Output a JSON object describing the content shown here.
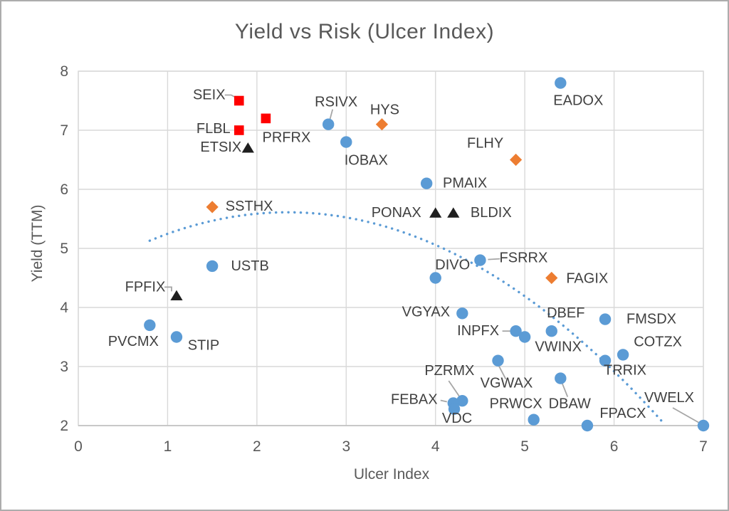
{
  "chart_data": {
    "type": "scatter",
    "title": "Yield vs Risk (Ulcer Index)",
    "xlabel": "Ulcer Index",
    "ylabel": "Yield (TTM)",
    "xlim": [
      0,
      7
    ],
    "ylim": [
      2,
      8
    ],
    "xticks": [
      0,
      1,
      2,
      3,
      4,
      5,
      6,
      7
    ],
    "yticks": [
      2,
      3,
      4,
      5,
      6,
      7,
      8
    ],
    "grid": true,
    "legend_position": "none",
    "series": [
      {
        "name": "blue-circle-funds",
        "marker": "circle",
        "color": "#5B9BD5",
        "points": [
          {
            "label": "EADOX",
            "x": 5.4,
            "y": 7.8,
            "label_dx": 25,
            "label_dy": 25
          },
          {
            "label": "RSIVX",
            "x": 2.8,
            "y": 7.1,
            "label_dx": 11,
            "label_dy": -31,
            "leader": [
              [
                6,
                -21
              ],
              [
                2,
                -6
              ]
            ]
          },
          {
            "label": "IOBAX",
            "x": 3.0,
            "y": 6.8,
            "label_dx": 28,
            "label_dy": 26
          },
          {
            "label": "PMAIX",
            "x": 3.9,
            "y": 6.1,
            "label_dx": 54,
            "label_dy": 0
          },
          {
            "label": "USTB",
            "x": 1.5,
            "y": 4.7,
            "label_dx": 53,
            "label_dy": 0
          },
          {
            "label": "FSRRX",
            "x": 4.5,
            "y": 4.8,
            "label_dx": 61,
            "label_dy": -3,
            "leader": [
              [
                11,
                -1
              ],
              [
                28,
                -2
              ]
            ]
          },
          {
            "label": "DIVO",
            "x": 4.0,
            "y": 4.5,
            "label_dx": 24,
            "label_dy": -18
          },
          {
            "label": "VGYAX",
            "x": 4.3,
            "y": 3.9,
            "label_dx": -51,
            "label_dy": -2
          },
          {
            "label": "INPFX",
            "x": 4.9,
            "y": 3.6,
            "label_dx": -53,
            "label_dy": 0,
            "leader": [
              [
                -19,
                0
              ],
              [
                -8,
                0
              ]
            ]
          },
          {
            "label": "VWINX",
            "x": 5.0,
            "y": 3.5,
            "label_dx": 47,
            "label_dy": 14
          },
          {
            "label": "DBEF",
            "x": 5.3,
            "y": 3.6,
            "label_dx": 20,
            "label_dy": -25
          },
          {
            "label": "FMSDX",
            "x": 5.9,
            "y": 3.8,
            "label_dx": 65,
            "label_dy": 0
          },
          {
            "label": "COTZX",
            "x": 6.1,
            "y": 3.2,
            "label_dx": 49,
            "label_dy": -18
          },
          {
            "label": "TRRIX",
            "x": 5.9,
            "y": 3.1,
            "label_dx": 28,
            "label_dy": 14
          },
          {
            "label": "VGWAX",
            "x": 4.7,
            "y": 3.1,
            "label_dx": 12,
            "label_dy": 32,
            "leader": [
              [
                1,
                7
              ],
              [
                11,
                26
              ]
            ]
          },
          {
            "label": "DBAW",
            "x": 5.4,
            "y": 2.8,
            "label_dx": 13,
            "label_dy": 36,
            "leader": [
              [
                2,
                6
              ],
              [
                10,
                26
              ]
            ]
          },
          {
            "label": "PZRMX",
            "x": 4.3,
            "y": 2.42,
            "label_dx": -18,
            "label_dy": -42,
            "leader": [
              [
                -19,
                -28
              ],
              [
                -4,
                -6
              ]
            ]
          },
          {
            "label": "FEBAX",
            "x": 4.2,
            "y": 2.38,
            "label_dx": -55,
            "label_dy": -5,
            "leader": [
              [
                -18,
                -4
              ],
              [
                -9,
                -2
              ]
            ]
          },
          {
            "label": "VDC",
            "x": 4.21,
            "y": 2.28,
            "label_dx": 4,
            "label_dy": 13
          },
          {
            "label": "PRWCX",
            "x": 5.1,
            "y": 2.1,
            "label_dx": -25,
            "label_dy": -22
          },
          {
            "label": "FPACX",
            "x": 5.7,
            "y": 2.0,
            "label_dx": 50,
            "label_dy": -17
          },
          {
            "label": "VWELX",
            "x": 7.0,
            "y": 2.0,
            "label_dx": -48,
            "label_dy": -39,
            "leader": [
              [
                -43,
                -25
              ],
              [
                -6,
                -4
              ]
            ]
          },
          {
            "label": "PVCMX",
            "x": 0.8,
            "y": 3.7,
            "label_dx": -23,
            "label_dy": 23
          },
          {
            "label": "STIP",
            "x": 1.1,
            "y": 3.5,
            "label_dx": 38,
            "label_dy": 12
          }
        ]
      },
      {
        "name": "orange-diamond-funds",
        "marker": "diamond",
        "color": "#ED7D31",
        "points": [
          {
            "label": "HYS",
            "x": 3.4,
            "y": 7.1,
            "label_dx": 4,
            "label_dy": -20
          },
          {
            "label": "FLHY",
            "x": 4.9,
            "y": 6.5,
            "label_dx": -43,
            "label_dy": -23
          },
          {
            "label": "SSTHX",
            "x": 1.5,
            "y": 5.7,
            "label_dx": 52,
            "label_dy": -1
          },
          {
            "label": "FAGIX",
            "x": 5.3,
            "y": 4.5,
            "label_dx": 50,
            "label_dy": 1
          }
        ]
      },
      {
        "name": "red-square-funds",
        "marker": "square",
        "color": "#FF0000",
        "points": [
          {
            "label": "SEIX",
            "x": 1.8,
            "y": 7.5,
            "label_dx": -42,
            "label_dy": -8,
            "leader": [
              [
                -20,
                -8
              ],
              [
                -11,
                -8
              ],
              [
                -4,
                -4
              ]
            ]
          },
          {
            "label": "FLBL",
            "x": 1.8,
            "y": 7.0,
            "label_dx": -36,
            "label_dy": -2
          },
          {
            "label": "PRFRX",
            "x": 2.1,
            "y": 7.2,
            "label_dx": 29,
            "label_dy": 27
          }
        ]
      },
      {
        "name": "black-triangle-funds",
        "marker": "triangle",
        "color": "#1F1F1F",
        "points": [
          {
            "label": "ETSIX",
            "x": 1.9,
            "y": 6.7,
            "label_dx": -38,
            "label_dy": -1
          },
          {
            "label": "FPFIX",
            "x": 1.1,
            "y": 4.2,
            "label_dx": -44,
            "label_dy": -12,
            "leader": [
              [
                -17,
                -12
              ],
              [
                -7,
                -12
              ],
              [
                -7,
                -6
              ]
            ]
          },
          {
            "label": "PONAX",
            "x": 4.0,
            "y": 5.6,
            "label_dx": -55,
            "label_dy": 0
          },
          {
            "label": "BLDIX",
            "x": 4.2,
            "y": 5.6,
            "label_dx": 53,
            "label_dy": 0
          }
        ]
      }
    ],
    "trendline": {
      "style": "dotted",
      "color": "#5B9BD5",
      "poly_coeffs": [
        -0.2015,
        0.945,
        4.503
      ],
      "x_start": 0.8,
      "x_end": 6.55
    },
    "style_colors": {
      "gridline": "#D9D9D9",
      "axis_line": "#BFBFBF",
      "tick_text": "#595959",
      "point_label_text": "#404040",
      "leader_line": "#A6A6A6",
      "title_text": "#595959",
      "frame_border": "#ACACAC"
    }
  }
}
